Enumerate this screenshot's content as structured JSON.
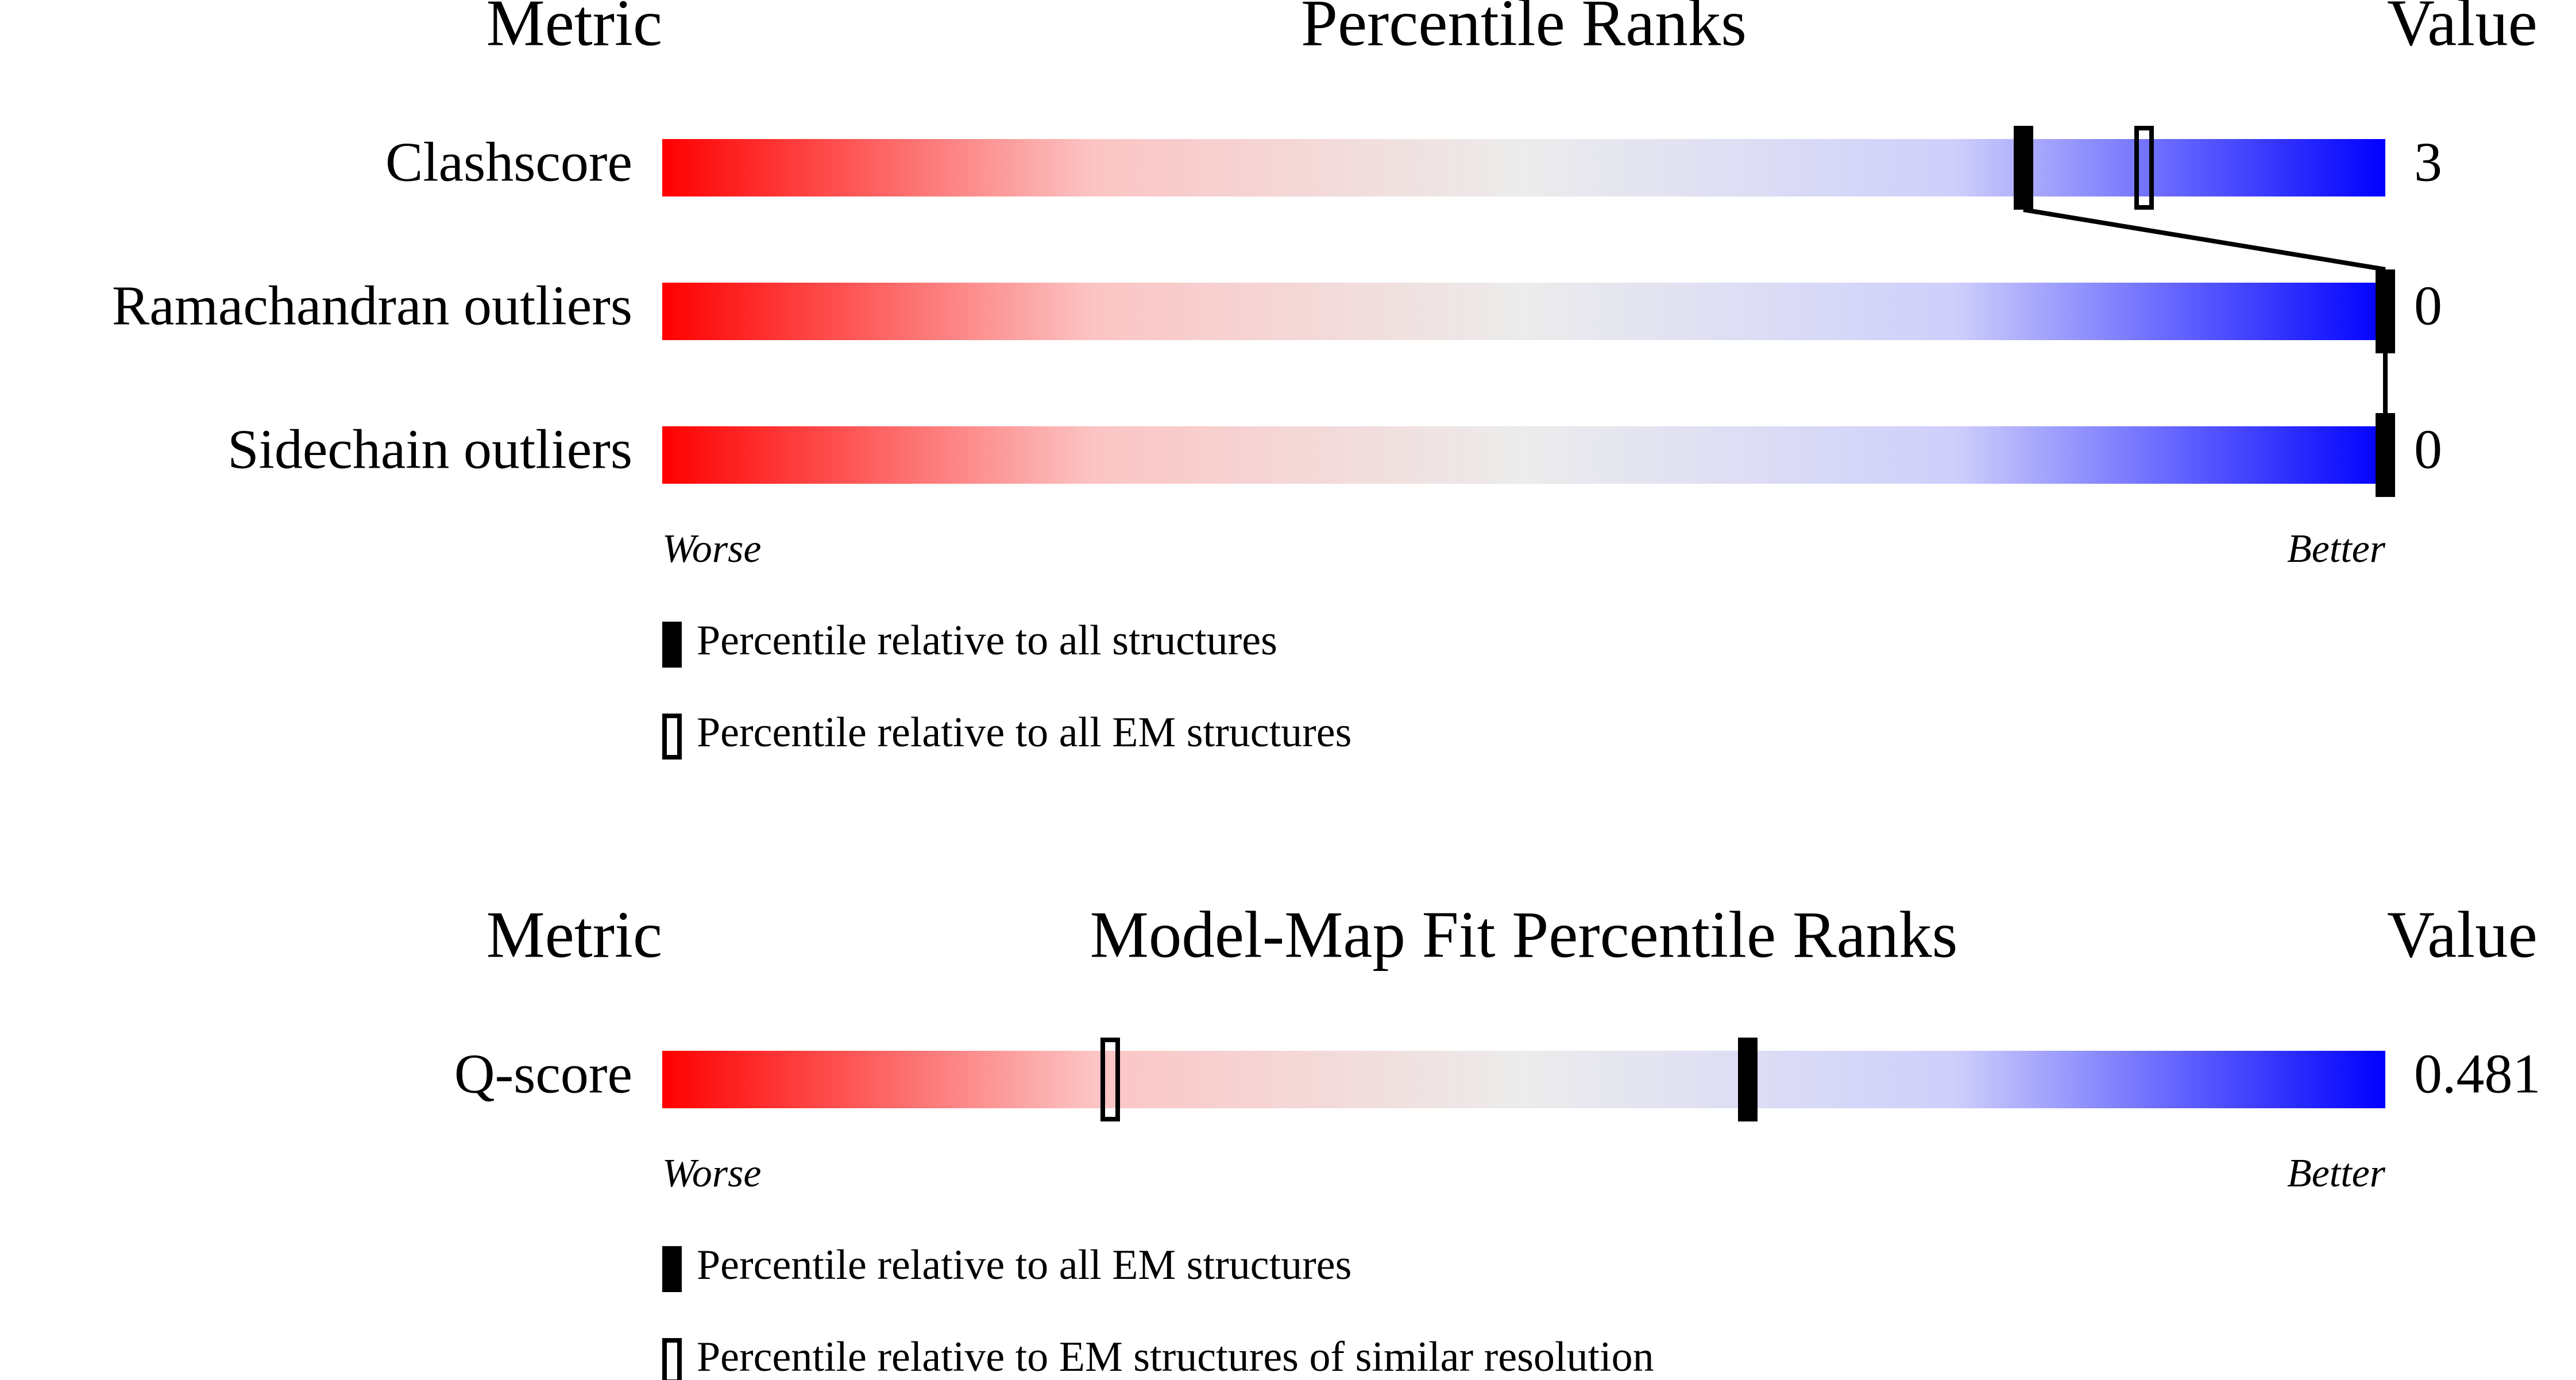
{
  "panels": [
    {
      "headers": {
        "metric": "Metric",
        "title": "Percentile Ranks",
        "value": "Value"
      },
      "xlim": [
        0,
        100
      ],
      "worse": "Worse",
      "better": "Better",
      "metrics": [
        {
          "name": "Clashscore",
          "value": 3,
          "percentiles": [
            79,
            86
          ]
        },
        {
          "name": "Ramachandran outliers",
          "value": 0,
          "percentiles": [
            100
          ]
        },
        {
          "name": "Sidechain outliers",
          "value": 0,
          "percentiles": [
            100
          ]
        }
      ],
      "legend": [
        "Percentile relative to all structures",
        "Percentile relative to all EM structures"
      ]
    },
    {
      "headers": {
        "metric": "Metric",
        "title": "Model-Map Fit Percentile Ranks",
        "value": "Value"
      },
      "xlim": [
        0,
        100
      ],
      "worse": "Worse",
      "better": "Better",
      "metrics": [
        {
          "name": "Q-score",
          "value": 0.481,
          "percentiles": [
            63,
            26
          ]
        }
      ],
      "legend": [
        "Percentile relative to all EM structures",
        "Percentile relative to EM structures of similar resolution"
      ]
    }
  ]
}
